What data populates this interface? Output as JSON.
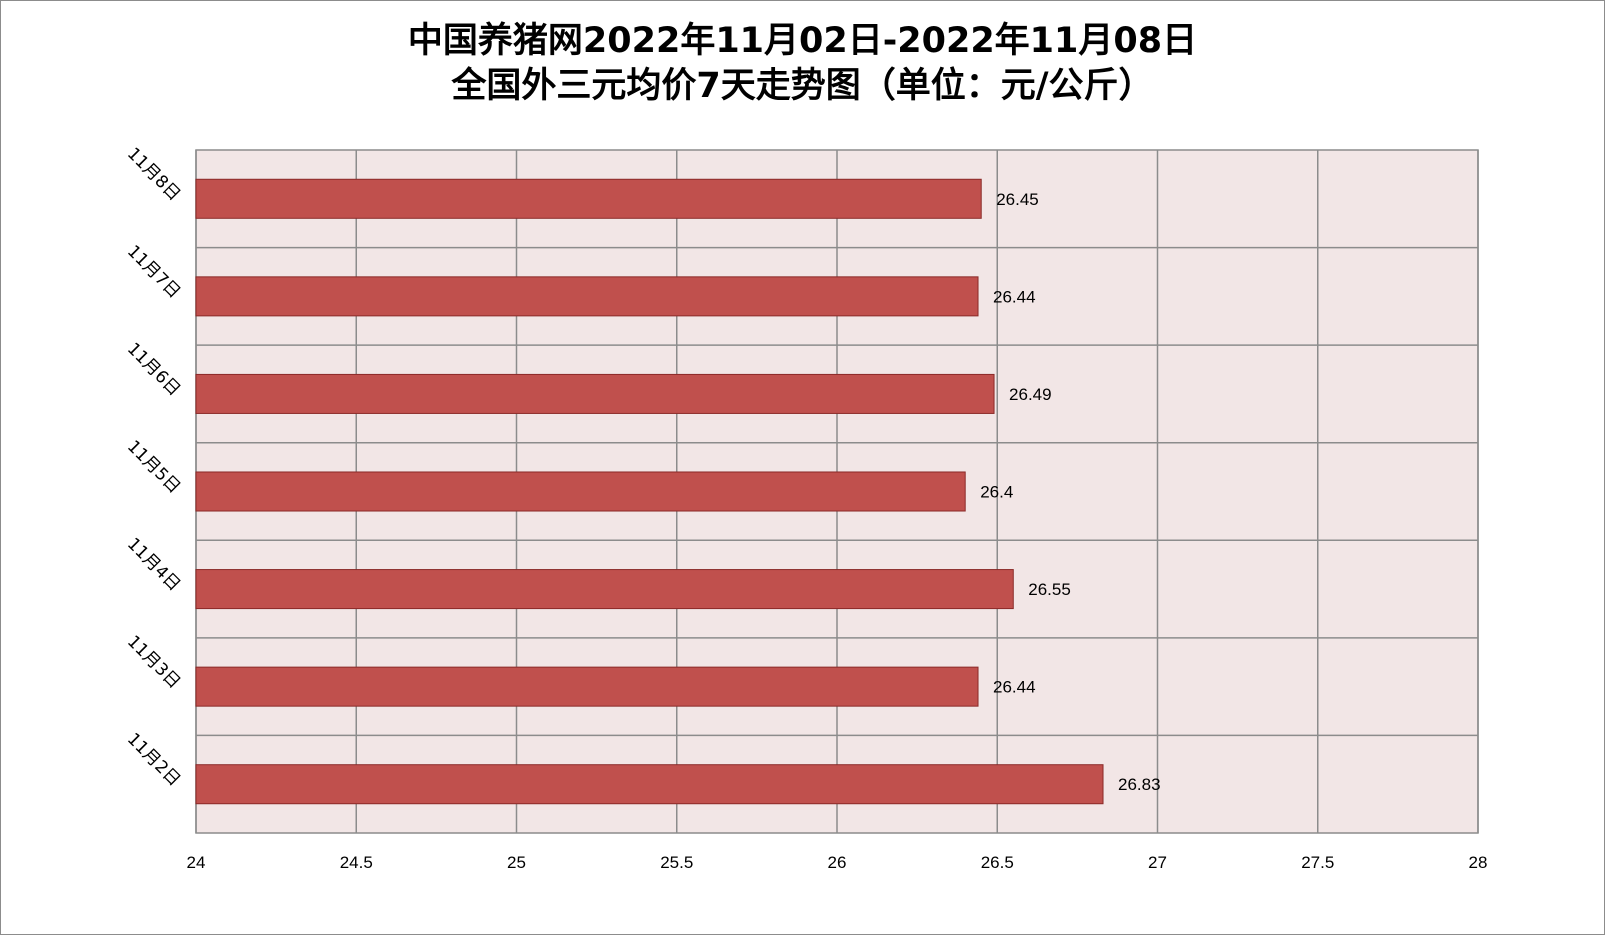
{
  "chart_data": {
    "type": "bar",
    "orientation": "horizontal",
    "title_line1": "中国养猪网2022年11月02日-2022年11月08日",
    "title_line2": "全国外三元均价7天走势图（单位：元/公斤）",
    "categories": [
      "11月2日",
      "11月3日",
      "11月4日",
      "11月5日",
      "11月6日",
      "11月7日",
      "11月8日"
    ],
    "values": [
      26.83,
      26.44,
      26.55,
      26.4,
      26.49,
      26.44,
      26.45
    ],
    "value_labels": [
      "26.83",
      "26.44",
      "26.55",
      "26.4",
      "26.49",
      "26.44",
      "26.45"
    ],
    "x_ticks": [
      "24",
      "24.5",
      "25",
      "25.5",
      "26",
      "26.5",
      "27",
      "27.5",
      "28"
    ],
    "xlim": [
      24,
      28
    ],
    "grid": true,
    "legend": "none",
    "colors": {
      "bar_fill": "#c0504d",
      "bar_stroke": "#8b2a28",
      "plot_bg": "#f2e6e6",
      "grid": "#8c8c8c"
    }
  }
}
